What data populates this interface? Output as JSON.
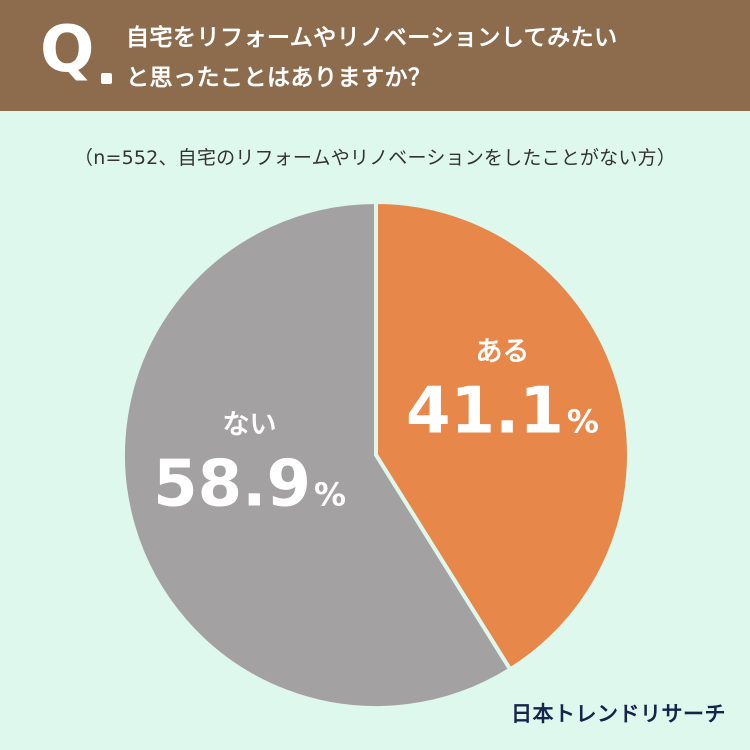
{
  "header": {
    "q_mark": "Q",
    "question_line1": "自宅をリフォームやリノベーションしてみたい",
    "question_line2": "と思ったことはありますか？",
    "background": "#8c6c4d"
  },
  "sample_note": "（n=552、自宅のリフォームやリノベーションをしたことがない方）",
  "chart_data": {
    "type": "pie",
    "title": "",
    "categories": [
      "ある",
      "ない"
    ],
    "values": [
      41.1,
      58.9
    ],
    "value_labels": [
      "41.1",
      "58.9"
    ],
    "unit": "%",
    "colors": [
      "#e8874a",
      "#a3a1a1"
    ],
    "start": "12 o'clock, clockwise",
    "legend": "none"
  },
  "brand": "日本トレンドリサーチ",
  "background": "#dff8ee"
}
